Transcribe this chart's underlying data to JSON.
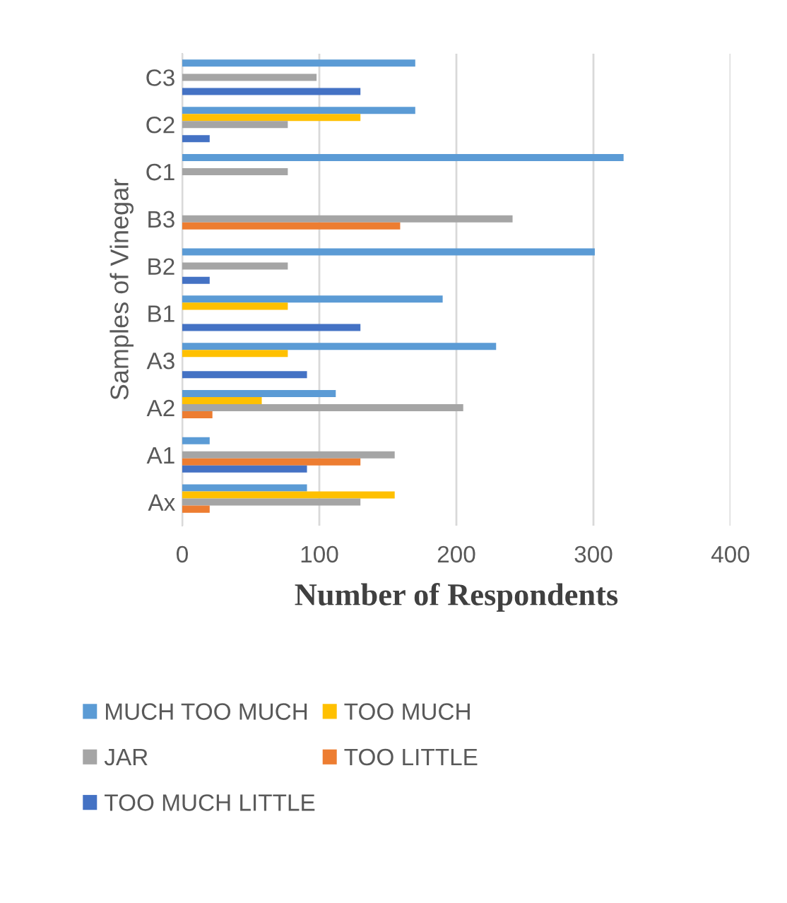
{
  "chart_data": {
    "type": "bar",
    "orientation": "horizontal",
    "xlabel": "Number of Respondents",
    "ylabel": "Samples of Vinegar",
    "categories": [
      "C3",
      "C2",
      "C1",
      "B3",
      "B2",
      "B1",
      "A3",
      "A2",
      "A1",
      "Ax"
    ],
    "series": [
      {
        "name": "MUCH TOO MUCH",
        "color": "#5b9bd5",
        "values": [
          170,
          170,
          322,
          null,
          301,
          190,
          229,
          112,
          20,
          91
        ]
      },
      {
        "name": "TOO MUCH",
        "color": "#ffc000",
        "values": [
          null,
          130,
          null,
          null,
          null,
          77,
          77,
          58,
          null,
          155
        ]
      },
      {
        "name": "JAR",
        "color": "#a5a5a5",
        "values": [
          98,
          77,
          77,
          241,
          77,
          null,
          null,
          205,
          155,
          130
        ]
      },
      {
        "name": "TOO LITTLE",
        "color": "#ed7d31",
        "values": [
          null,
          null,
          null,
          159,
          null,
          null,
          null,
          22,
          130,
          20
        ]
      },
      {
        "name": "TOO MUCH LITTLE",
        "color": "#4472c4",
        "values": [
          130,
          20,
          null,
          null,
          20,
          130,
          91,
          null,
          91,
          null
        ]
      }
    ],
    "xlim": [
      0,
      400
    ],
    "xticks": [
      0,
      100,
      200,
      300,
      400
    ],
    "grid": "x",
    "legend": "bottom"
  }
}
